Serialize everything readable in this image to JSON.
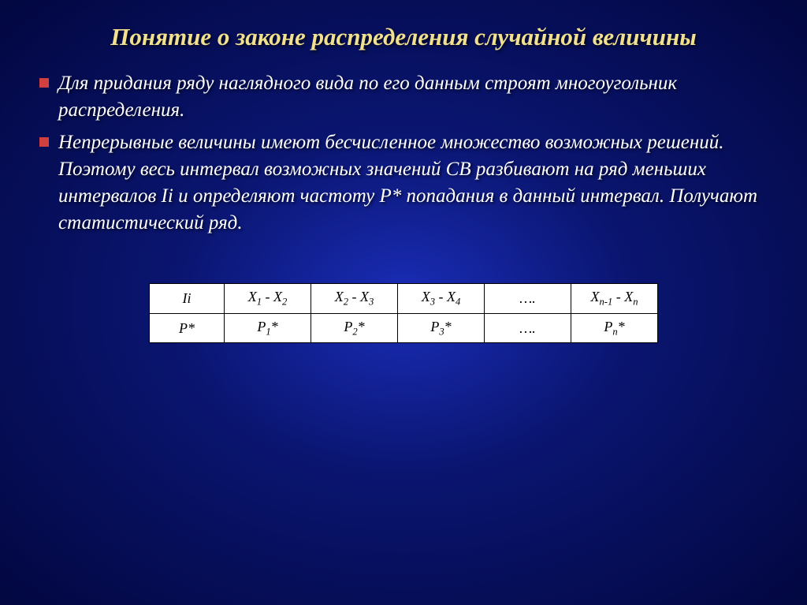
{
  "title": "Понятие о законе распределения случайной величины",
  "bullets": [
    "Для придания ряду наглядного вида по его данным строят многоугольник распределения.",
    "Непрерывные величины имеют бесчисленное множество возможных решений. Поэтому весь интервал возможных значений СВ разбивают на ряд меньших интервалов Ii и определяют частоту P* попадания в данный интервал. Получают статистический ряд."
  ],
  "table": {
    "type": "table",
    "rows": [
      [
        "Ii",
        "X<sub>1</sub> - X<sub>2</sub>",
        "X<sub>2</sub> - X<sub>3</sub>",
        "X<sub>3</sub> - X<sub>4</sub>",
        "….",
        "X<sub>n-1</sub> - X<sub>n</sub>"
      ],
      [
        "P*",
        "P<sub>1</sub>*",
        "P<sub>2</sub>*",
        "P<sub>3</sub>*",
        "….",
        "P<sub>n</sub>*"
      ]
    ],
    "border_color": "#000000",
    "background_color": "#ffffff",
    "text_color": "#000000",
    "font_style": "italic",
    "cell_fontsize": 18
  },
  "colors": {
    "title_color": "#f0e090",
    "body_text_color": "#ffffff",
    "bullet_color": "#d04040",
    "bg_center": "#1a2db8",
    "bg_mid": "#0a1570",
    "bg_edge": "#020740"
  },
  "typography": {
    "title_fontsize": 31,
    "body_fontsize": 25,
    "font_family": "Georgia, Times New Roman, serif",
    "italic": true
  }
}
